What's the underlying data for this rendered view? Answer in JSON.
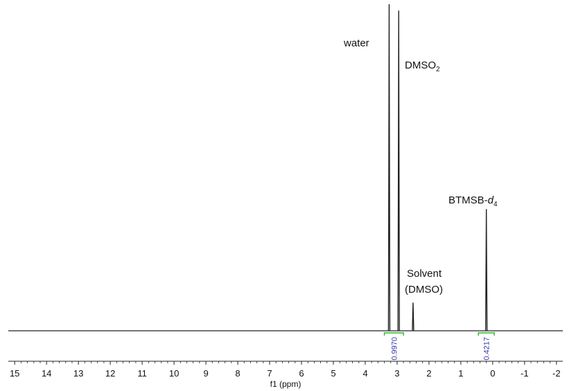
{
  "chart_data": {
    "type": "line",
    "title": "",
    "xlabel": "f1 (ppm)",
    "ylabel": "",
    "xlim": [
      15.2,
      -2.2
    ],
    "x_reversed": true,
    "x_ticks": [
      15,
      14,
      13,
      12,
      11,
      10,
      9,
      8,
      7,
      6,
      5,
      4,
      3,
      2,
      1,
      0,
      -1,
      -2
    ],
    "grid": false,
    "legend": "none",
    "line_color": "#222222",
    "integral_color": "#2db52d",
    "integral_label_color": "#3a3aa8",
    "peaks": [
      {
        "name": "water",
        "ppm": 3.25,
        "height": 1.02
      },
      {
        "name": "DMSO2",
        "ppm": 2.95,
        "height": 1.0
      },
      {
        "name": "Solvent (DMSO)",
        "ppm": 2.5,
        "height": 0.088
      },
      {
        "name": "BTMSB-d4",
        "ppm": 0.2,
        "height": 0.38
      }
    ],
    "annotations": [
      {
        "id": "water",
        "text": "water"
      },
      {
        "id": "dmso2",
        "text": "DMSO",
        "sub": "2"
      },
      {
        "id": "solvent_1",
        "text": "Solvent"
      },
      {
        "id": "solvent_2",
        "text": "(DMSO)"
      },
      {
        "id": "btmsb",
        "text": "BTMSB-",
        "italic": "d",
        "sub": "4"
      }
    ],
    "integrals": [
      {
        "from": 3.4,
        "to": 2.8,
        "value": "0.9970"
      },
      {
        "from": 0.45,
        "to": -0.05,
        "value": "0.4217"
      }
    ]
  }
}
